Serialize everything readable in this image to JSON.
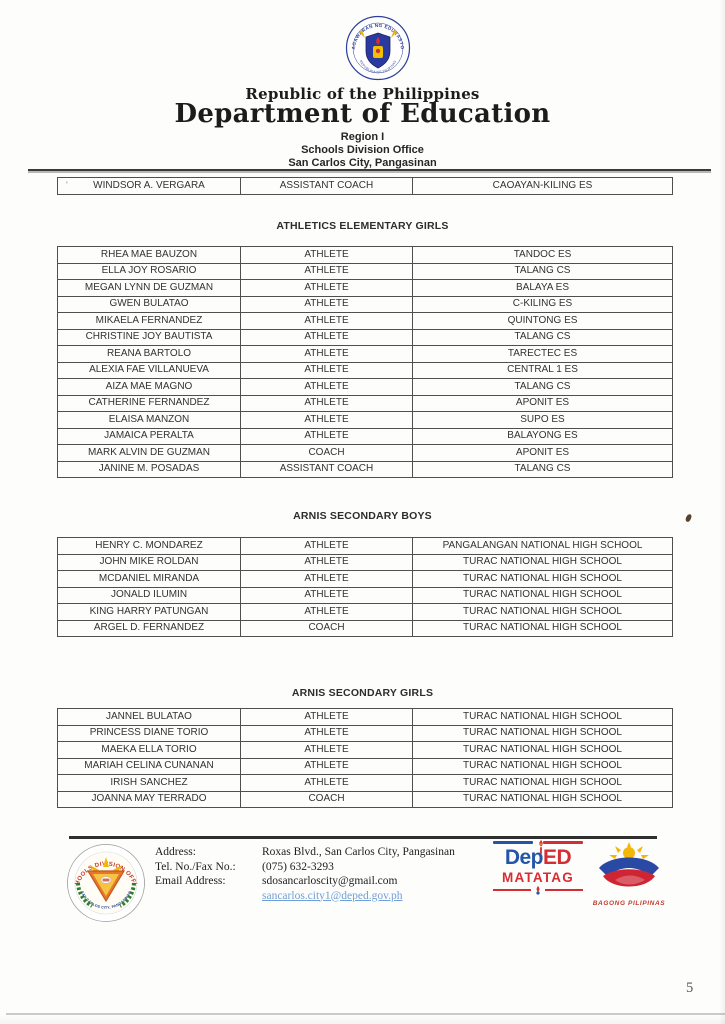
{
  "header": {
    "seal_text_top": "KAGAWARAN NG EDUKASYON",
    "seal_text_bottom": "REPUBLIKA NG PILIPINAS",
    "republic": "Republic of the Philippines",
    "department": "Department of Education",
    "region": "Region I",
    "office": "Schools Division Office",
    "city": "San Carlos City, Pangasinan"
  },
  "leading_row": {
    "name": "WINDSOR A. VERGARA",
    "role": "ASSISTANT COACH",
    "school": "CAOAYAN-KILING ES"
  },
  "sections": [
    {
      "title": "ATHLETICS ELEMENTARY GIRLS",
      "rows": [
        {
          "name": "RHEA MAE BAUZON",
          "role": "ATHLETE",
          "school": "TANDOC ES"
        },
        {
          "name": "ELLA JOY ROSARIO",
          "role": "ATHLETE",
          "school": "TALANG CS"
        },
        {
          "name": "MEGAN LYNN DE GUZMAN",
          "role": "ATHLETE",
          "school": "BALAYA ES"
        },
        {
          "name": "GWEN BULATAO",
          "role": "ATHLETE",
          "school": "C-KILING ES"
        },
        {
          "name": "MIKAELA FERNANDEZ",
          "role": "ATHLETE",
          "school": "QUINTONG ES"
        },
        {
          "name": "CHRISTINE JOY BAUTISTA",
          "role": "ATHLETE",
          "school": "TALANG CS"
        },
        {
          "name": "REANA BARTOLO",
          "role": "ATHLETE",
          "school": "TARECTEC ES"
        },
        {
          "name": "ALEXIA FAE VILLANUEVA",
          "role": "ATHLETE",
          "school": "CENTRAL 1 ES"
        },
        {
          "name": "AIZA MAE MAGNO",
          "role": "ATHLETE",
          "school": "TALANG CS"
        },
        {
          "name": "CATHERINE FERNANDEZ",
          "role": "ATHLETE",
          "school": "APONIT ES"
        },
        {
          "name": "ELAISA MANZON",
          "role": "ATHLETE",
          "school": "SUPO ES"
        },
        {
          "name": "JAMAICA PERALTA",
          "role": "ATHLETE",
          "school": "BALAYONG ES"
        },
        {
          "name": "MARK ALVIN DE GUZMAN",
          "role": "COACH",
          "school": "APONIT ES"
        },
        {
          "name": "JANINE M. POSADAS",
          "role": "ASSISTANT COACH",
          "school": "TALANG CS"
        }
      ]
    },
    {
      "title": "ARNIS SECONDARY BOYS",
      "rows": [
        {
          "name": "HENRY C. MONDAREZ",
          "role": "ATHLETE",
          "school": "PANGALANGAN NATIONAL HIGH SCHOOL"
        },
        {
          "name": "JOHN MIKE ROLDAN",
          "role": "ATHLETE",
          "school": "TURAC NATIONAL HIGH SCHOOL"
        },
        {
          "name": "MCDANIEL MIRANDA",
          "role": "ATHLETE",
          "school": "TURAC NATIONAL HIGH SCHOOL"
        },
        {
          "name": "JONALD ILUMIN",
          "role": "ATHLETE",
          "school": "TURAC NATIONAL HIGH SCHOOL"
        },
        {
          "name": "KING HARRY PATUNGAN",
          "role": "ATHLETE",
          "school": "TURAC NATIONAL HIGH SCHOOL"
        },
        {
          "name": "ARGEL D. FERNANDEZ",
          "role": "COACH",
          "school": "TURAC NATIONAL HIGH SCHOOL"
        }
      ]
    },
    {
      "title": "ARNIS SECONDARY GIRLS",
      "rows": [
        {
          "name": "JANNEL BULATAO",
          "role": "ATHLETE",
          "school": "TURAC NATIONAL HIGH SCHOOL"
        },
        {
          "name": "PRINCESS DIANE TORIO",
          "role": "ATHLETE",
          "school": "TURAC NATIONAL HIGH SCHOOL"
        },
        {
          "name": "MAEKA ELLA TORIO",
          "role": "ATHLETE",
          "school": "TURAC NATIONAL HIGH SCHOOL"
        },
        {
          "name": "MARIAH CELINA CUNANAN",
          "role": "ATHLETE",
          "school": "TURAC NATIONAL HIGH SCHOOL"
        },
        {
          "name": "IRISH SANCHEZ",
          "role": "ATHLETE",
          "school": "TURAC NATIONAL HIGH SCHOOL"
        },
        {
          "name": "JOANNA MAY TERRADO",
          "role": "COACH",
          "school": "TURAC NATIONAL HIGH SCHOOL"
        }
      ]
    }
  ],
  "footer": {
    "labels": {
      "address": "Address:",
      "tel": "Tel. No./Fax No.:",
      "email": "Email Address:"
    },
    "values": {
      "address": "Roxas Blvd., San Carlos City, Pangasinan",
      "tel": "(075) 632-3293",
      "email_gmail": "sdosancarloscity@gmail.com",
      "email_deped": "sancarlos.city1@deped.gov.ph"
    },
    "sdo_seal": {
      "text_top": "SCHOOLS DIVISION OFFICE",
      "text_bottom": "SAN CARLOS CITY, PANGASINAN"
    },
    "deped_logo": {
      "dep": "Dep",
      "ed": "ED",
      "matatag": "MATATAG"
    },
    "bagong_logo": {
      "label": "BAGONG PILIPINAS"
    }
  },
  "page_number": "5",
  "colors": {
    "seal_blue": "#2a3e9c",
    "deped_blue": "#2456a8",
    "deped_red": "#d42e35",
    "link_blue": "#6f9fd8",
    "wreath_green": "#2e7d32",
    "sun_yellow": "#f3b70a"
  }
}
